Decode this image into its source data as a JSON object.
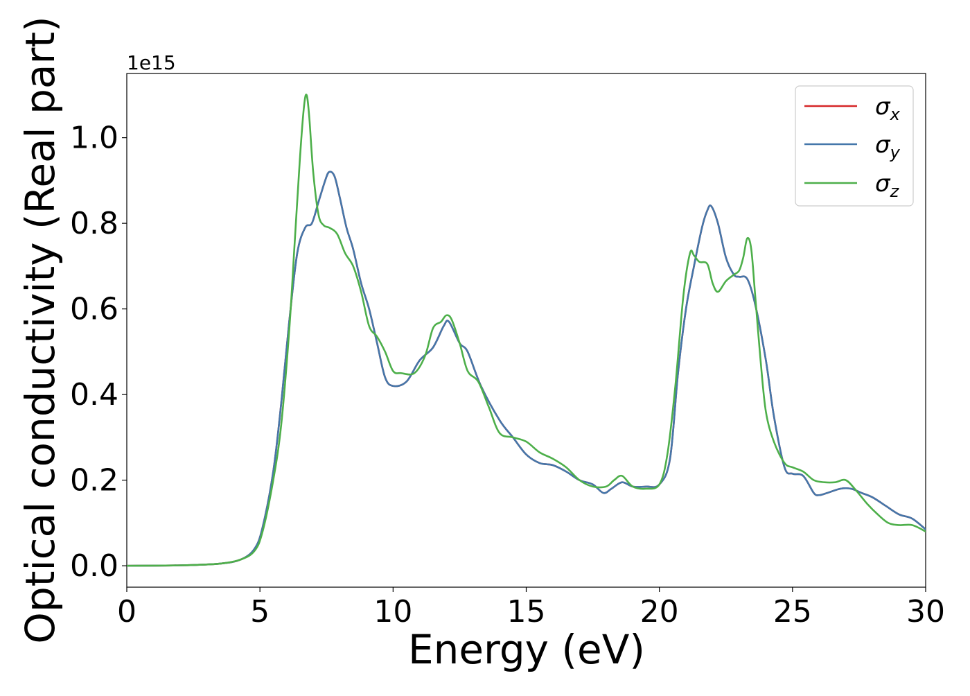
{
  "chart_data": {
    "type": "line",
    "xlabel": "Energy (eV)",
    "ylabel": "Optical conductivity (Real part)",
    "y_offset_text": "1e15",
    "xlim": [
      0,
      30
    ],
    "ylim": [
      -0.05,
      1.15
    ],
    "xticks": [
      0,
      5,
      10,
      15,
      20,
      25,
      30
    ],
    "yticks": [
      0.0,
      0.2,
      0.4,
      0.6,
      0.8,
      1.0
    ],
    "xtick_labels": [
      "0",
      "5",
      "10",
      "15",
      "20",
      "25",
      "30"
    ],
    "ytick_labels": [
      "0.0",
      "0.2",
      "0.4",
      "0.6",
      "0.8",
      "1.0"
    ],
    "grid": false,
    "legend_position": "top-right",
    "series": [
      {
        "name": "σx",
        "symbol": "σ",
        "subscript": "x",
        "color": "#d62728",
        "x": [
          0,
          2,
          3.5,
          4.3,
          4.8,
          5.1,
          5.5,
          5.8,
          6.1,
          6.4,
          6.7,
          6.95,
          7.2,
          7.45,
          7.6,
          7.8,
          8.0,
          8.25,
          8.5,
          8.8,
          9.1,
          9.4,
          9.7,
          10.0,
          10.5,
          11.0,
          11.5,
          11.9,
          12.1,
          12.5,
          12.8,
          13.3,
          14.0,
          14.5,
          15.0,
          15.5,
          16.0,
          16.5,
          17.0,
          17.5,
          17.9,
          18.2,
          18.6,
          19.0,
          19.5,
          20.0,
          20.4,
          20.7,
          21.0,
          21.3,
          21.6,
          21.8,
          21.95,
          22.2,
          22.5,
          22.8,
          23.0,
          23.3,
          23.6,
          24.0,
          24.3,
          24.7,
          25.0,
          25.4,
          25.8,
          26.0,
          26.3,
          26.8,
          27.2,
          27.6,
          28.0,
          28.5,
          29.0,
          29.5,
          30.0
        ],
        "y": [
          0.0,
          0.001,
          0.005,
          0.015,
          0.04,
          0.09,
          0.22,
          0.38,
          0.57,
          0.73,
          0.79,
          0.8,
          0.85,
          0.9,
          0.92,
          0.91,
          0.86,
          0.79,
          0.74,
          0.66,
          0.6,
          0.52,
          0.44,
          0.42,
          0.43,
          0.48,
          0.51,
          0.56,
          0.57,
          0.52,
          0.5,
          0.42,
          0.34,
          0.3,
          0.26,
          0.24,
          0.235,
          0.22,
          0.2,
          0.19,
          0.17,
          0.18,
          0.195,
          0.185,
          0.185,
          0.19,
          0.25,
          0.45,
          0.6,
          0.7,
          0.79,
          0.83,
          0.84,
          0.8,
          0.72,
          0.68,
          0.675,
          0.67,
          0.61,
          0.48,
          0.35,
          0.23,
          0.215,
          0.21,
          0.17,
          0.165,
          0.17,
          0.18,
          0.18,
          0.17,
          0.16,
          0.14,
          0.12,
          0.11,
          0.085
        ]
      },
      {
        "name": "σy",
        "symbol": "σ",
        "subscript": "y",
        "color": "#4477aa",
        "x": [
          0,
          2,
          3.5,
          4.3,
          4.8,
          5.1,
          5.5,
          5.8,
          6.1,
          6.4,
          6.7,
          6.95,
          7.2,
          7.45,
          7.6,
          7.8,
          8.0,
          8.25,
          8.5,
          8.8,
          9.1,
          9.4,
          9.7,
          10.0,
          10.5,
          11.0,
          11.5,
          11.9,
          12.1,
          12.5,
          12.8,
          13.3,
          14.0,
          14.5,
          15.0,
          15.5,
          16.0,
          16.5,
          17.0,
          17.5,
          17.9,
          18.2,
          18.6,
          19.0,
          19.5,
          20.0,
          20.4,
          20.7,
          21.0,
          21.3,
          21.6,
          21.8,
          21.95,
          22.2,
          22.5,
          22.8,
          23.0,
          23.3,
          23.6,
          24.0,
          24.3,
          24.7,
          25.0,
          25.4,
          25.8,
          26.0,
          26.3,
          26.8,
          27.2,
          27.6,
          28.0,
          28.5,
          29.0,
          29.5,
          30.0
        ],
        "y": [
          0.0,
          0.001,
          0.005,
          0.015,
          0.04,
          0.09,
          0.22,
          0.38,
          0.57,
          0.73,
          0.79,
          0.8,
          0.85,
          0.9,
          0.92,
          0.91,
          0.86,
          0.79,
          0.74,
          0.66,
          0.6,
          0.52,
          0.44,
          0.42,
          0.43,
          0.48,
          0.51,
          0.56,
          0.57,
          0.52,
          0.5,
          0.42,
          0.34,
          0.3,
          0.26,
          0.24,
          0.235,
          0.22,
          0.2,
          0.19,
          0.17,
          0.18,
          0.195,
          0.185,
          0.185,
          0.19,
          0.25,
          0.45,
          0.6,
          0.7,
          0.79,
          0.83,
          0.84,
          0.8,
          0.72,
          0.68,
          0.675,
          0.67,
          0.61,
          0.48,
          0.35,
          0.23,
          0.215,
          0.21,
          0.17,
          0.165,
          0.17,
          0.18,
          0.18,
          0.17,
          0.16,
          0.14,
          0.12,
          0.11,
          0.085
        ]
      },
      {
        "name": "σz",
        "symbol": "σ",
        "subscript": "z",
        "color": "#4daf4a",
        "x": [
          0,
          2,
          3.5,
          4.3,
          4.8,
          5.1,
          5.5,
          5.8,
          6.1,
          6.3,
          6.5,
          6.65,
          6.75,
          6.85,
          7.0,
          7.2,
          7.4,
          7.6,
          7.9,
          8.2,
          8.5,
          8.8,
          9.1,
          9.4,
          9.7,
          10.0,
          10.3,
          10.8,
          11.2,
          11.5,
          11.8,
          12.0,
          12.2,
          12.5,
          12.8,
          13.2,
          13.6,
          14.0,
          14.5,
          15.0,
          15.5,
          16.0,
          16.5,
          17.0,
          17.5,
          18.0,
          18.3,
          18.6,
          19.0,
          19.5,
          20.0,
          20.3,
          20.6,
          20.9,
          21.15,
          21.3,
          21.5,
          21.8,
          22.0,
          22.2,
          22.5,
          22.8,
          23.0,
          23.15,
          23.3,
          23.45,
          23.6,
          23.8,
          24.0,
          24.3,
          24.7,
          25.0,
          25.4,
          25.8,
          26.2,
          26.6,
          27.0,
          27.4,
          27.8,
          28.2,
          28.6,
          29.0,
          29.5,
          30.0
        ],
        "y": [
          0.0,
          0.001,
          0.005,
          0.015,
          0.035,
          0.08,
          0.2,
          0.33,
          0.55,
          0.75,
          0.95,
          1.07,
          1.1,
          1.05,
          0.92,
          0.82,
          0.795,
          0.79,
          0.775,
          0.73,
          0.7,
          0.64,
          0.56,
          0.535,
          0.5,
          0.455,
          0.45,
          0.45,
          0.49,
          0.555,
          0.57,
          0.585,
          0.575,
          0.52,
          0.455,
          0.43,
          0.37,
          0.31,
          0.3,
          0.29,
          0.265,
          0.25,
          0.23,
          0.2,
          0.185,
          0.185,
          0.2,
          0.21,
          0.185,
          0.18,
          0.19,
          0.26,
          0.42,
          0.63,
          0.73,
          0.725,
          0.71,
          0.705,
          0.66,
          0.64,
          0.665,
          0.68,
          0.69,
          0.72,
          0.765,
          0.74,
          0.63,
          0.48,
          0.36,
          0.29,
          0.24,
          0.23,
          0.22,
          0.2,
          0.195,
          0.195,
          0.2,
          0.175,
          0.145,
          0.12,
          0.1,
          0.095,
          0.095,
          0.08
        ]
      }
    ]
  }
}
